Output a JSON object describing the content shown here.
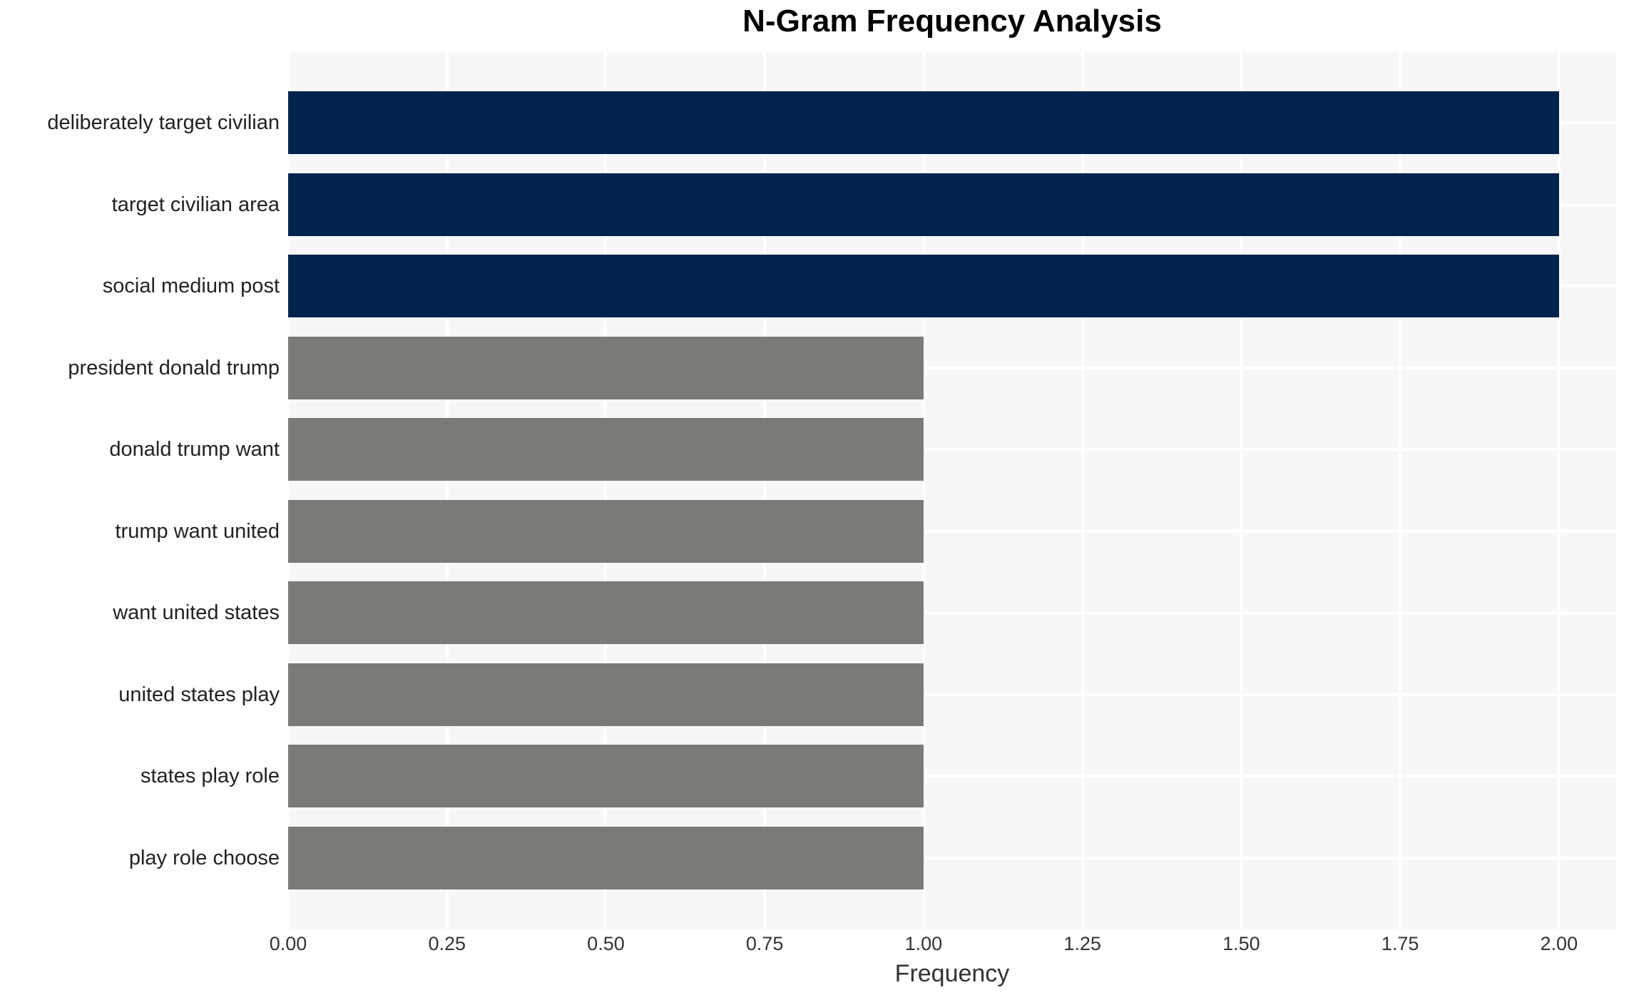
{
  "chart_data": {
    "type": "bar",
    "orientation": "horizontal",
    "title": "N-Gram Frequency Analysis",
    "xlabel": "Frequency",
    "ylabel": "",
    "categories": [
      "deliberately target civilian",
      "target civilian area",
      "social medium post",
      "president donald trump",
      "donald trump want",
      "trump want united",
      "want united states",
      "united states play",
      "states play role",
      "play role choose"
    ],
    "values": [
      2,
      2,
      2,
      1,
      1,
      1,
      1,
      1,
      1,
      1
    ],
    "bar_colors": [
      "#02234c",
      "#02234c",
      "#02234c",
      "#7b7a77",
      "#7b7a77",
      "#7b7a77",
      "#7b7a77",
      "#7b7a77",
      "#7b7a77",
      "#7b7a77"
    ],
    "x_ticks": [
      "0.00",
      "0.25",
      "0.50",
      "0.75",
      "1.00",
      "1.25",
      "1.50",
      "1.75",
      "2.00"
    ],
    "x_tick_values": [
      0,
      0.25,
      0.5,
      0.75,
      1.0,
      1.25,
      1.5,
      1.75,
      2.0
    ],
    "xlim": [
      0,
      2.09
    ],
    "grid": true,
    "legend": false,
    "plot_bg_color": "#f7f7f7",
    "grid_color": "#ffffff",
    "figure_bg_color": "#ffffff"
  }
}
